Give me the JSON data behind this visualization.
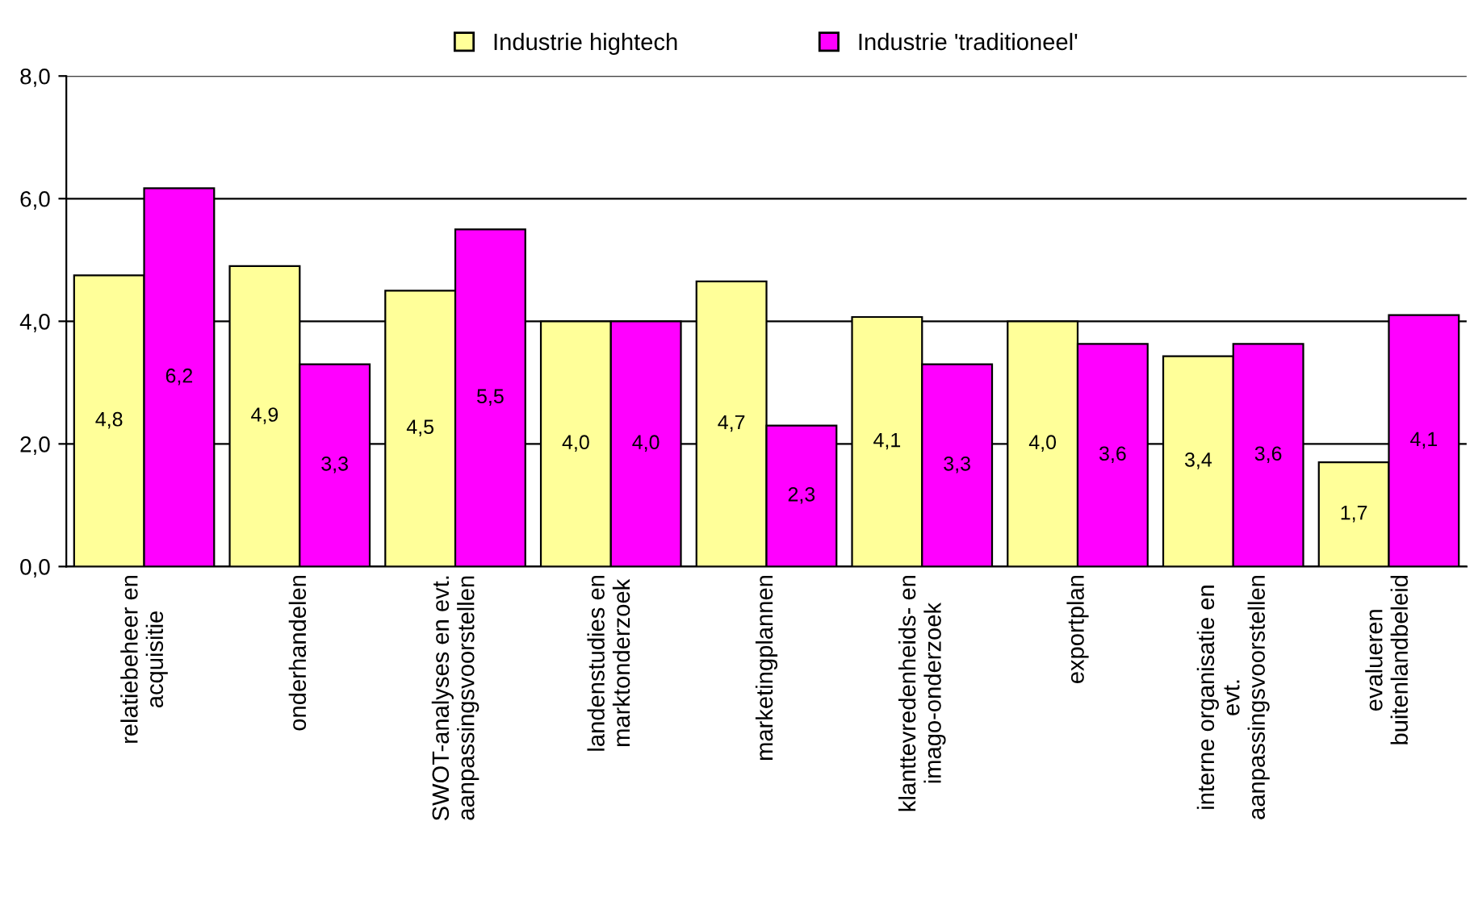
{
  "chart_data": {
    "type": "bar",
    "categories": [
      "relatiebeheer en\nacquisitie",
      "onderhandelen",
      "SWOT-analyses en evt.\naanpassingsvoorstellen",
      "landenstudies en\nmarktonderzoek",
      "marketingplannen",
      "klanttevredenheids- en\nimago-onderzoek",
      "exportplan",
      "interne organisatie en\nevt.\naanpassingsvoorstellen",
      "evalueren\nbuitenlandbeleid"
    ],
    "series": [
      {
        "name": "Industrie hightech",
        "color": "#ffff99",
        "values": [
          4.75,
          4.9,
          4.5,
          4.0,
          4.65,
          4.07,
          4.0,
          3.43,
          1.7
        ],
        "value_labels": [
          "4,8",
          "4,9",
          "4,5",
          "4,0",
          "4,7",
          "4,1",
          "4,0",
          "3,4",
          "1,7"
        ]
      },
      {
        "name": "Industrie 'traditioneel'",
        "color": "#ff00ff",
        "values": [
          6.17,
          3.3,
          5.5,
          4.0,
          2.3,
          3.3,
          3.63,
          3.63,
          4.1
        ],
        "value_labels": [
          "6,2",
          "3,3",
          "5,5",
          "4,0",
          "2,3",
          "3,3",
          "3,6",
          "3,6",
          "4,1"
        ]
      }
    ],
    "ylim": [
      0,
      8
    ],
    "yticks": [
      {
        "value": 0,
        "label": "0,0"
      },
      {
        "value": 2,
        "label": "2,0"
      },
      {
        "value": 4,
        "label": "4,0"
      },
      {
        "value": 6,
        "label": "6,0"
      },
      {
        "value": 8,
        "label": "8,0"
      }
    ],
    "grid": "y",
    "legend": "top"
  }
}
